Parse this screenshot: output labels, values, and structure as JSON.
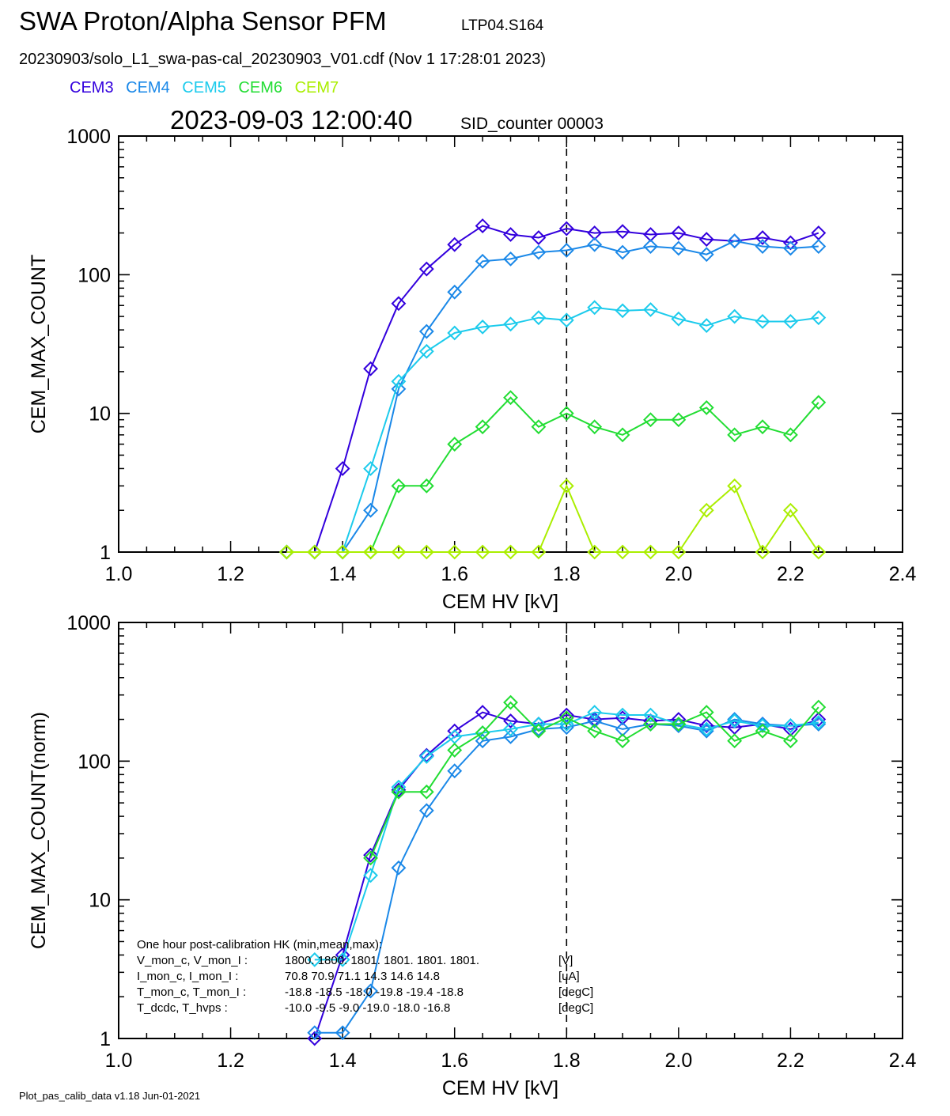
{
  "header": {
    "title": "SWA Proton/Alpha Sensor PFM",
    "sensor_id": "LTP04.S164",
    "file_line": "20230903/solo_L1_swa-pas-cal_20230903_V01.cdf  (Nov  1 17:28:01 2023)",
    "timestamp": "2023-09-03 12:00:40",
    "sid": "SID_counter 00003"
  },
  "legend": [
    {
      "name": "CEM3",
      "color": "#3300dd"
    },
    {
      "name": "CEM4",
      "color": "#1a88e8"
    },
    {
      "name": "CEM5",
      "color": "#1ccbec"
    },
    {
      "name": "CEM6",
      "color": "#22dd33"
    },
    {
      "name": "CEM7",
      "color": "#aaee00"
    }
  ],
  "footer": "Plot_pas_calib_data v1.18 Jun-01-2021",
  "hk": {
    "title": "One hour post-calibration HK (min,mean,max):",
    "rows": [
      {
        "label": "V_mon_c, V_mon_I :",
        "vals": "1800.  1800.  1801.       1801.  1801.  1801.",
        "unit": "[V]"
      },
      {
        "label": "I_mon_c,  I_mon_I :",
        "vals": "70.8    70.9   71.1         14.3   14.6   14.8",
        "unit": "[uA]"
      },
      {
        "label": "T_mon_c, T_mon_I :",
        "vals": "-18.8  -18.5  -18.0       -19.8  -19.4  -18.8",
        "unit": "[degC]"
      },
      {
        "label": "T_dcdc,    T_hvps :",
        "vals": "-10.0   -9.5   -9.0         -19.0  -18.0  -16.8",
        "unit": "[degC]"
      }
    ]
  },
  "chart_data": [
    {
      "type": "line",
      "xlabel": "CEM HV [kV]",
      "ylabel": "CEM_MAX_COUNT",
      "xlim": [
        1.0,
        2.4
      ],
      "ylim": [
        1,
        1000
      ],
      "yscale": "log",
      "xticks": [
        "1.0",
        "1.2",
        "1.4",
        "1.6",
        "1.8",
        "2.0",
        "2.2",
        "2.4"
      ],
      "yticks": [
        "1",
        "10",
        "100",
        "1000"
      ],
      "vline": 1.8,
      "x": [
        1.3,
        1.35,
        1.4,
        1.45,
        1.5,
        1.55,
        1.6,
        1.65,
        1.7,
        1.75,
        1.8,
        1.85,
        1.9,
        1.95,
        2.0,
        2.05,
        2.1,
        2.15,
        2.2,
        2.25
      ],
      "series": [
        {
          "name": "CEM3",
          "values": [
            1,
            1,
            4,
            21,
            62,
            110,
            165,
            225,
            195,
            185,
            215,
            200,
            205,
            195,
            200,
            180,
            175,
            185,
            170,
            200
          ]
        },
        {
          "name": "CEM4",
          "values": [
            1,
            1,
            1,
            2,
            15,
            39,
            75,
            125,
            130,
            145,
            150,
            165,
            145,
            160,
            155,
            140,
            175,
            160,
            155,
            160
          ]
        },
        {
          "name": "CEM5",
          "values": [
            1,
            1,
            1,
            4,
            17,
            28,
            38,
            42,
            44,
            49,
            47,
            58,
            55,
            56,
            48,
            43,
            50,
            46,
            46,
            49
          ]
        },
        {
          "name": "CEM6",
          "values": [
            1,
            1,
            1,
            1,
            3,
            3,
            6,
            8,
            13,
            8,
            10,
            8,
            7,
            9,
            9,
            11,
            7,
            8,
            7,
            12
          ]
        },
        {
          "name": "CEM7",
          "values": [
            1,
            1,
            1,
            1,
            1,
            1,
            1,
            1,
            1,
            1,
            3,
            1,
            1,
            1,
            1,
            2,
            3,
            1,
            2,
            1
          ]
        }
      ]
    },
    {
      "type": "line",
      "xlabel": "CEM HV [kV]",
      "ylabel": "CEM_MAX_COUNT(norm)",
      "xlim": [
        1.0,
        2.4
      ],
      "ylim": [
        1,
        1000
      ],
      "yscale": "log",
      "xticks": [
        "1.0",
        "1.2",
        "1.4",
        "1.6",
        "1.8",
        "2.0",
        "2.2",
        "2.4"
      ],
      "yticks": [
        "1",
        "10",
        "100",
        "1000"
      ],
      "vline": 1.8,
      "series": [
        {
          "name": "CEM3",
          "x": [
            1.35,
            1.4,
            1.45,
            1.5,
            1.55,
            1.6,
            1.65,
            1.7,
            1.75,
            1.8,
            1.85,
            1.9,
            1.95,
            2.0,
            2.05,
            2.1,
            2.15,
            2.2,
            2.25
          ],
          "values": [
            1,
            4,
            21,
            62,
            110,
            165,
            225,
            195,
            185,
            215,
            200,
            205,
            195,
            200,
            180,
            175,
            185,
            170,
            200
          ]
        },
        {
          "name": "CEM4",
          "x": [
            1.35,
            1.4,
            1.45,
            1.5,
            1.55,
            1.6,
            1.65,
            1.7,
            1.75,
            1.8,
            1.85,
            1.9,
            1.95,
            2.0,
            2.05,
            2.1,
            2.15,
            2.2,
            2.25
          ],
          "values": [
            1.1,
            1.1,
            2.2,
            17,
            44,
            85,
            140,
            150,
            170,
            175,
            195,
            170,
            185,
            180,
            165,
            200,
            185,
            180,
            185
          ]
        },
        {
          "name": "CEM5",
          "x": [
            1.35,
            1.4,
            1.45,
            1.5,
            1.55,
            1.6,
            1.65,
            1.7,
            1.75,
            1.8,
            1.85,
            1.9,
            1.95,
            2.0,
            2.05,
            2.1,
            2.15,
            2.2,
            2.25
          ],
          "values": [
            3.7,
            3.7,
            15,
            65,
            108,
            150,
            160,
            170,
            185,
            185,
            225,
            215,
            215,
            185,
            170,
            195,
            180,
            180,
            190
          ]
        },
        {
          "name": "CEM6",
          "x": [
            1.45,
            1.5,
            1.55,
            1.6,
            1.65,
            1.7,
            1.75,
            1.8,
            1.85,
            1.9,
            1.95,
            2.0,
            2.05,
            2.1,
            2.15,
            2.2,
            2.25
          ],
          "values": [
            20,
            60,
            60,
            120,
            160,
            265,
            165,
            205,
            165,
            140,
            185,
            185,
            225,
            140,
            165,
            140,
            245
          ]
        },
        {
          "name": "CEM7",
          "x": [],
          "values": []
        }
      ]
    }
  ]
}
